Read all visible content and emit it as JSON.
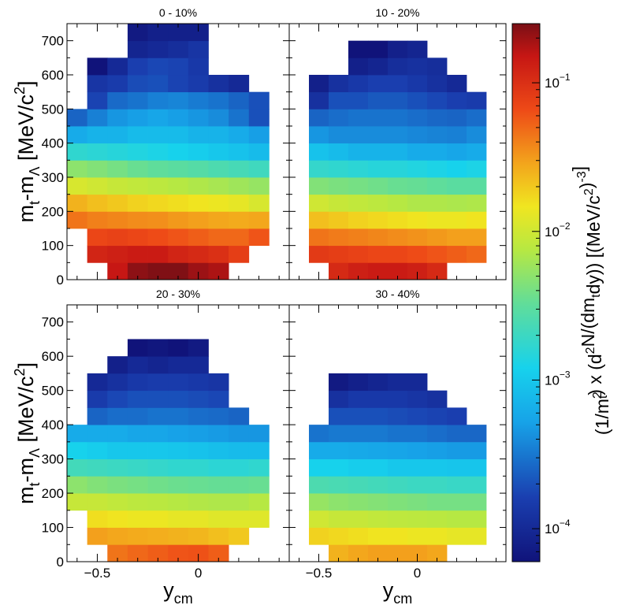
{
  "chart_data": {
    "type": "heatmap",
    "xlabel": "y_cm",
    "ylabel": "m_t-m_Λ [MeV/c^2]",
    "xlim": [
      -0.65,
      0.45
    ],
    "ylim": [
      0,
      750
    ],
    "x_bin_edges": [
      -0.65,
      -0.55,
      -0.45,
      -0.35,
      -0.25,
      -0.15,
      -0.05,
      0.05,
      0.15,
      0.25,
      0.35,
      0.45
    ],
    "y_bin_edges": [
      0,
      50,
      100,
      150,
      200,
      250,
      300,
      350,
      400,
      450,
      500,
      550,
      600,
      650,
      700,
      750
    ],
    "x_ticks": [
      -0.5,
      0
    ],
    "x_tick_labels": [
      "−0.5",
      "0"
    ],
    "y_ticks": [
      0,
      100,
      200,
      300,
      400,
      500,
      600,
      700
    ],
    "y_tick_labels": [
      "0",
      "100",
      "200",
      "300",
      "400",
      "500",
      "600",
      "700"
    ],
    "colorbar": {
      "scale": "log",
      "min": 6e-05,
      "max": 0.25,
      "tick_values": [
        0.0001,
        0.001,
        0.01,
        0.1
      ],
      "tick_mantissa": "10",
      "tick_exponents": [
        "−4",
        "−3",
        "−2",
        "−1"
      ],
      "label": "(1/m_t^2) x (d^2N/(dm_t dy)) [(MeV/c^2)^-3]"
    },
    "panels": [
      {
        "title": "0 - 10%",
        "rows": [
          [
            null,
            null,
            0.15,
            0.22,
            0.24,
            0.24,
            0.2,
            0.18,
            null,
            null,
            null
          ],
          [
            null,
            0.12,
            0.13,
            0.14,
            0.14,
            0.12,
            0.11,
            0.1,
            0.08,
            null,
            null
          ],
          [
            null,
            0.07,
            0.075,
            0.07,
            0.065,
            0.06,
            0.055,
            0.05,
            0.05,
            0.06,
            null
          ],
          [
            0.045,
            0.04,
            0.038,
            0.036,
            0.035,
            0.032,
            0.03,
            0.028,
            0.027,
            0.028,
            null
          ],
          [
            0.025,
            0.022,
            0.02,
            0.018,
            0.017,
            0.016,
            0.015,
            0.014,
            0.013,
            0.011,
            null
          ],
          [
            0.011,
            0.01,
            0.009,
            0.0085,
            0.008,
            0.0075,
            0.007,
            0.0065,
            0.006,
            0.0055,
            null
          ],
          [
            0.005,
            0.0045,
            0.004,
            0.0035,
            0.0032,
            0.003,
            0.0028,
            0.0025,
            0.0023,
            0.0021,
            null
          ],
          [
            0.0017,
            0.0016,
            0.0015,
            0.0014,
            0.0013,
            0.0012,
            0.0011,
            0.001,
            0.0009,
            0.0008,
            null
          ],
          [
            0.0006,
            0.0007,
            0.0007,
            0.0008,
            0.0008,
            0.0008,
            0.0007,
            0.0007,
            0.0006,
            0.0005,
            null
          ],
          [
            0.00025,
            0.00035,
            0.00045,
            0.0005,
            0.00055,
            0.0005,
            0.00045,
            0.0004,
            0.0003,
            0.0002,
            null
          ],
          [
            null,
            0.00017,
            0.00027,
            0.0003,
            0.00035,
            0.00037,
            0.00033,
            0.0003,
            0.00025,
            0.0002,
            null
          ],
          [
            null,
            0.00013,
            0.00015,
            0.00019,
            0.0002,
            0.00017,
            0.00015,
            0.00012,
            0.0001,
            null,
            null
          ],
          [
            null,
            6e-05,
            0.0001,
            0.00016,
            0.00018,
            0.00017,
            0.00014,
            null,
            null,
            null,
            null
          ],
          [
            null,
            null,
            null,
            9e-05,
            0.0001,
            0.00011,
            0.00013,
            null,
            null,
            null,
            null
          ],
          [
            null,
            null,
            null,
            7e-05,
            8e-05,
            8e-05,
            8e-05,
            null,
            null,
            null,
            null
          ]
        ]
      },
      {
        "title": "10 - 20%",
        "rows": [
          [
            null,
            null,
            0.11,
            0.13,
            0.14,
            0.14,
            0.13,
            0.11,
            null,
            null,
            null
          ],
          [
            null,
            0.085,
            0.08,
            0.075,
            0.07,
            0.07,
            0.065,
            0.06,
            0.055,
            0.05,
            null
          ],
          [
            null,
            0.045,
            0.042,
            0.04,
            0.038,
            0.036,
            0.034,
            0.032,
            0.03,
            0.03,
            null
          ],
          [
            null,
            0.022,
            0.02,
            0.018,
            0.017,
            0.016,
            0.015,
            0.014,
            0.014,
            0.015,
            null
          ],
          [
            null,
            0.01,
            0.009,
            0.0085,
            0.008,
            0.0075,
            0.007,
            0.007,
            0.0068,
            0.007,
            null
          ],
          [
            null,
            0.0045,
            0.0042,
            0.004,
            0.0038,
            0.0035,
            0.0034,
            0.0032,
            0.003,
            0.003,
            null
          ],
          [
            null,
            0.0018,
            0.0017,
            0.0016,
            0.0015,
            0.0015,
            0.0014,
            0.0013,
            0.0012,
            0.0013,
            null
          ],
          [
            null,
            0.0009,
            0.0008,
            0.0007,
            0.0007,
            0.0007,
            0.0006,
            0.0006,
            0.00055,
            0.0006,
            null
          ],
          [
            null,
            0.00045,
            0.0004,
            0.0004,
            0.0004,
            0.0004,
            0.00038,
            0.00036,
            0.00035,
            0.0004,
            null
          ],
          [
            null,
            0.00025,
            0.00028,
            0.0003,
            0.0003,
            0.0003,
            0.00028,
            0.00026,
            0.00025,
            0.00028,
            null
          ],
          [
            null,
            0.00012,
            0.0002,
            0.0002,
            0.00022,
            0.00022,
            0.0002,
            0.00018,
            0.00016,
            0.00015,
            null
          ],
          [
            null,
            8e-05,
            0.00012,
            0.00014,
            0.00016,
            0.00016,
            0.00014,
            0.00012,
            0.0001,
            null,
            null
          ],
          [
            null,
            null,
            null,
            8e-05,
            9e-05,
            0.00011,
            0.00012,
            0.00011,
            null,
            null,
            null
          ],
          [
            null,
            null,
            null,
            6e-05,
            6e-05,
            8e-05,
            9e-05,
            null,
            null,
            null,
            null
          ],
          [
            null,
            null,
            null,
            null,
            null,
            null,
            null,
            null,
            null,
            null,
            null
          ]
        ]
      },
      {
        "title": "20 - 30%",
        "rows": [
          [
            null,
            null,
            0.045,
            0.05,
            0.055,
            0.06,
            0.062,
            0.055,
            null,
            null,
            null
          ],
          [
            null,
            0.03,
            0.028,
            0.027,
            0.026,
            0.025,
            0.024,
            0.022,
            0.02,
            null,
            null
          ],
          [
            null,
            0.016,
            0.015,
            0.014,
            0.014,
            0.013,
            0.013,
            0.012,
            0.012,
            0.012,
            null
          ],
          [
            0.009,
            0.009,
            0.0085,
            0.008,
            0.0078,
            0.0075,
            0.0072,
            0.007,
            0.007,
            0.0075,
            null
          ],
          [
            0.005,
            0.0045,
            0.0042,
            0.004,
            0.0038,
            0.0036,
            0.0035,
            0.0034,
            0.0034,
            0.0035,
            null
          ],
          [
            0.0022,
            0.0021,
            0.002,
            0.0019,
            0.0018,
            0.0017,
            0.0017,
            0.0016,
            0.0016,
            0.0017,
            null
          ],
          [
            0.0012,
            0.0011,
            0.001,
            0.001,
            0.001,
            0.00095,
            0.0009,
            0.00085,
            0.0008,
            0.0008,
            null
          ],
          [
            0.0006,
            0.0006,
            0.0006,
            0.00055,
            0.00055,
            0.00052,
            0.0005,
            0.00048,
            0.00045,
            0.00045,
            null
          ],
          [
            null,
            0.00025,
            0.00028,
            0.00028,
            0.0003,
            0.0003,
            0.00028,
            0.00027,
            0.00025,
            null,
            null
          ],
          [
            null,
            0.00015,
            0.00018,
            0.0002,
            0.0002,
            0.0002,
            0.00019,
            0.00018,
            null,
            null,
            null
          ],
          [
            null,
            0.0001,
            0.00012,
            0.00014,
            0.00015,
            0.00015,
            0.00014,
            0.00013,
            null,
            null,
            null
          ],
          [
            null,
            null,
            8e-05,
            0.0001,
            9e-05,
            0.0001,
            0.0001,
            null,
            null,
            null,
            null
          ],
          [
            null,
            null,
            null,
            6e-05,
            6.5e-05,
            6e-05,
            7e-05,
            null,
            null,
            null,
            null
          ],
          [
            null,
            null,
            null,
            null,
            null,
            null,
            null,
            null,
            null,
            null,
            null
          ],
          [
            null,
            null,
            null,
            null,
            null,
            null,
            null,
            null,
            null,
            null,
            null
          ]
        ]
      },
      {
        "title": "30 - 40%",
        "rows": [
          [
            null,
            null,
            0.025,
            0.028,
            0.03,
            0.03,
            0.03,
            0.028,
            null,
            null,
            null
          ],
          [
            null,
            0.018,
            0.017,
            0.016,
            0.015,
            0.015,
            0.014,
            0.014,
            0.013,
            0.013,
            null
          ],
          [
            null,
            0.01,
            0.009,
            0.009,
            0.0085,
            0.0082,
            0.008,
            0.0078,
            0.0075,
            0.0075,
            null
          ],
          [
            null,
            0.0055,
            0.005,
            0.0048,
            0.0046,
            0.0044,
            0.0042,
            0.004,
            0.004,
            0.004,
            null
          ],
          [
            null,
            0.0025,
            0.0024,
            0.0023,
            0.0022,
            0.0021,
            0.002,
            0.002,
            0.0019,
            0.0019,
            null
          ],
          [
            null,
            0.0012,
            0.0012,
            0.0011,
            0.0011,
            0.001,
            0.001,
            0.001,
            0.00095,
            0.00095,
            null
          ],
          [
            null,
            0.0006,
            0.0006,
            0.00058,
            0.00056,
            0.00054,
            0.00052,
            0.0005,
            0.00048,
            0.00048,
            null
          ],
          [
            null,
            0.0003,
            0.00032,
            0.00032,
            0.00032,
            0.0003,
            0.0003,
            0.00028,
            0.00026,
            0.00026,
            null
          ],
          [
            null,
            null,
            0.0002,
            0.0002,
            0.0002,
            0.00019,
            0.00018,
            0.00017,
            0.00016,
            null,
            null
          ],
          [
            null,
            null,
            0.00012,
            0.00014,
            0.00014,
            0.00014,
            0.00013,
            0.00012,
            null,
            null,
            null
          ],
          [
            null,
            null,
            7e-05,
            8e-05,
            9e-05,
            0.0001,
            0.0001,
            null,
            null,
            null,
            null
          ],
          [
            null,
            null,
            null,
            null,
            null,
            null,
            null,
            null,
            null,
            null,
            null
          ],
          [
            null,
            null,
            null,
            null,
            null,
            null,
            null,
            null,
            null,
            null,
            null
          ],
          [
            null,
            null,
            null,
            null,
            null,
            null,
            null,
            null,
            null,
            null,
            null
          ],
          [
            null,
            null,
            null,
            null,
            null,
            null,
            null,
            null,
            null,
            null,
            null
          ]
        ]
      }
    ]
  }
}
